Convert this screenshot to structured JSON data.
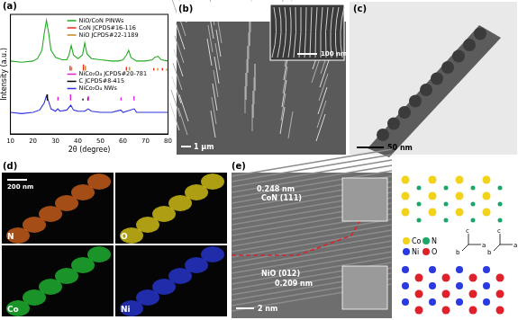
{
  "chart_data": {
    "type": "line",
    "x_label": "2θ (degree)",
    "y_label": "Intensity (a.u.)",
    "xlim": [
      10,
      80
    ],
    "xticks": [
      10,
      20,
      30,
      40,
      50,
      60,
      70,
      80
    ],
    "ylim": [
      0,
      100
    ],
    "tick_labels": "x",
    "grid": false,
    "legend": "top-right",
    "series": [
      {
        "name": "NiO/CoN PINWs",
        "color": "#22aa22",
        "type": "line",
        "x": [
          10,
          15,
          20,
          22,
          24,
          25,
          26,
          27,
          28,
          30,
          33,
          35,
          36,
          37,
          38,
          40,
          42,
          43,
          44,
          46,
          50,
          55,
          58,
          60,
          61.5,
          62.5,
          63.5,
          66,
          70,
          73,
          74,
          75.5,
          77,
          80
        ],
        "values": [
          61,
          60,
          61,
          63,
          70,
          84,
          95,
          84,
          70,
          64,
          62,
          62,
          66,
          74,
          66,
          63,
          66,
          76,
          67,
          63,
          62,
          61,
          61,
          62,
          66,
          70,
          64,
          61,
          61,
          62,
          64,
          65,
          62,
          61
        ]
      },
      {
        "name": "CoN JCPDS#16-116",
        "color": "#e8291c",
        "type": "stick",
        "base": 53,
        "x": [
          36.5,
          42.4,
          61.5,
          73.7,
          77.5
        ],
        "values": [
          57,
          58,
          56,
          55,
          55
        ]
      },
      {
        "name": "NiO JCPDS#22-1189",
        "color": "#c8861c",
        "type": "stick",
        "base": 53,
        "x": [
          37.2,
          43.3,
          62.9,
          75.4,
          79.4
        ],
        "values": [
          56,
          57,
          56,
          55,
          54.5
        ]
      },
      {
        "name": "NiCo₂O₄ JCPDS#20-781",
        "color": "#e020e0",
        "type": "stick",
        "base": 28,
        "x": [
          31.1,
          36.7,
          44.6,
          59.1,
          64.9
        ],
        "values": [
          31,
          33,
          31.5,
          30.5,
          31.5
        ]
      },
      {
        "name": "C JCPDS#8-415",
        "color": "#000000",
        "type": "stick",
        "base": 28,
        "x": [
          26.4,
          42.2,
          44.4
        ],
        "values": [
          33,
          29.5,
          30.5
        ]
      },
      {
        "name": "NiCo₂O₄ NWs",
        "color": "#3030e0",
        "type": "line",
        "x": [
          10,
          15,
          20,
          23,
          25,
          26,
          27,
          28,
          30,
          31,
          32,
          35,
          36.8,
          38,
          40,
          43,
          44.5,
          46,
          50,
          55,
          59,
          60,
          65,
          66,
          70,
          80
        ],
        "values": [
          18,
          17,
          18,
          20,
          26,
          32,
          27,
          21,
          19,
          21,
          19,
          20,
          24,
          20,
          19,
          19,
          21,
          19,
          18,
          18,
          20,
          18,
          21,
          18,
          18,
          18
        ]
      }
    ]
  },
  "panels": [
    {
      "label": "(a)"
    },
    {
      "label": "(b)",
      "scale_bar": "1 µm",
      "inset_scale_bar": "100 nm"
    },
    {
      "label": "(c)",
      "scale_bar": "50 nm"
    },
    {
      "label": "(d)",
      "scale_bar": "200 nm",
      "maps": [
        "N",
        "O",
        "Co",
        "Ni"
      ]
    },
    {
      "label": "(e)",
      "scale_bar": "2 nm",
      "annotations": [
        "0.248 nm",
        "CoN (111)",
        "NiO (012)",
        "0.209 nm"
      ],
      "atoms": [
        "Co",
        "N",
        "Ni",
        "O"
      ],
      "axes_labels": [
        "a",
        "b",
        "c"
      ]
    }
  ]
}
